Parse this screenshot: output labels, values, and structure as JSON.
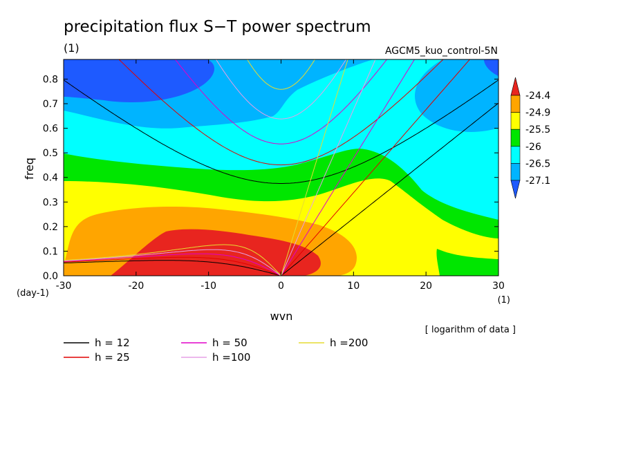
{
  "chart_data": {
    "type": "heatmap",
    "title": "precipitation flux S−T power spectrum",
    "units_label": "(1)",
    "case_label": "AGCM5_kuo_control-5N",
    "xlabel": "wvn",
    "ylabel": "freq",
    "x_unit_label": "(1)",
    "y_unit_label": "(day-1)",
    "xlim": [
      -30,
      30
    ],
    "ylim": [
      0,
      0.88
    ],
    "xticks": [
      "-30",
      "-20",
      "-10",
      "0",
      "10",
      "20",
      "30"
    ],
    "yticks": [
      "0.0",
      "0.1",
      "0.2",
      "0.3",
      "0.4",
      "0.5",
      "0.6",
      "0.7",
      "0.8"
    ],
    "scale_note": "[ logarithm of data ]",
    "colorbar": {
      "levels": [
        "-24.4",
        "-24.9",
        "-25.5",
        "-26",
        "-26.5",
        "-27.1"
      ],
      "colors": [
        "#e8251f",
        "#ffa500",
        "#ffff00",
        "#00e600",
        "#00ffff",
        "#00b4ff",
        "#1e5aff"
      ]
    },
    "dispersion_curves": [
      {
        "name": "h = 12",
        "h": 12,
        "color": "#000000"
      },
      {
        "name": "h = 25",
        "h": 25,
        "color": "#e00000"
      },
      {
        "name": "h = 50",
        "h": 50,
        "color": "#e000c8"
      },
      {
        "name": "h =100",
        "h": 100,
        "color": "#e6a0e6"
      },
      {
        "name": "h =200",
        "h": 200,
        "color": "#e6dc32"
      }
    ]
  }
}
